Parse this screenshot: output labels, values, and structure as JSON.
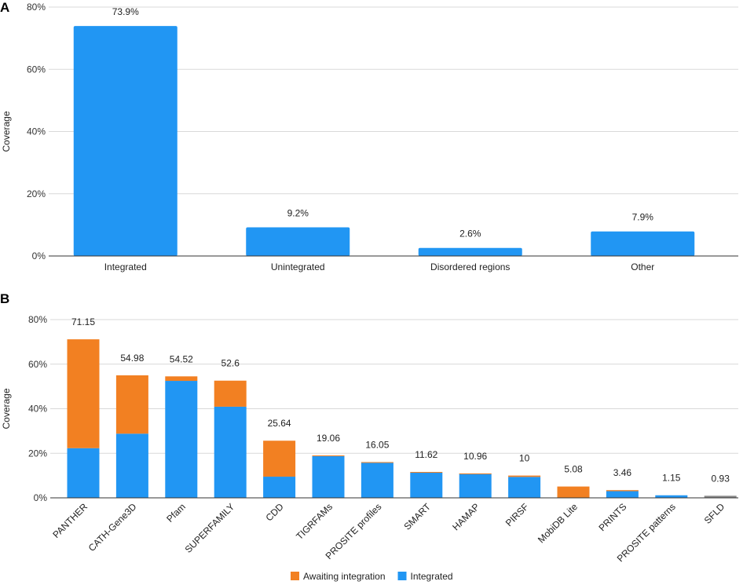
{
  "chart_data": [
    {
      "panel": "A",
      "type": "bar",
      "ylabel": "Coverage",
      "ylim": [
        0,
        80
      ],
      "yticks": [
        "0%",
        "20%",
        "40%",
        "60%",
        "80%"
      ],
      "categories": [
        "Integrated",
        "Unintegrated",
        "Disordered regions",
        "Other"
      ],
      "values": [
        73.9,
        9.2,
        2.6,
        7.9
      ],
      "data_labels": [
        "73.9%",
        "9.2%",
        "2.6%",
        "7.9%"
      ],
      "color": "#2196F3",
      "grid": true
    },
    {
      "panel": "B",
      "type": "bar",
      "stacked": true,
      "ylabel": "Coverage",
      "ylim": [
        0,
        80
      ],
      "yticks": [
        "0%",
        "20%",
        "40%",
        "60%",
        "80%"
      ],
      "categories": [
        "PANTHER",
        "CATH-Gene3D",
        "Pfam",
        "SUPERFAMILY",
        "CDD",
        "TIGRFAMs",
        "PROSITE profiles",
        "SMART",
        "HAMAP",
        "PIRSF",
        "MobiDB Lite",
        "PRINTS",
        "PROSITE patterns",
        "SFLD"
      ],
      "series": [
        {
          "name": "Integrated",
          "color": "#2196F3",
          "values": [
            22.3,
            28.8,
            52.5,
            40.9,
            9.5,
            18.7,
            15.8,
            11.3,
            10.9,
            9.4,
            0,
            3.0,
            1.15,
            0
          ]
        },
        {
          "name": "Awaiting integration",
          "color": "#F28022",
          "values": [
            48.85,
            26.18,
            2.02,
            11.7,
            16.14,
            0.36,
            0.25,
            0.32,
            0.06,
            0.6,
            5.08,
            0.46,
            0,
            0
          ]
        },
        {
          "name": "",
          "color": "#8A8A8A",
          "values": [
            0,
            0,
            0,
            0,
            0,
            0,
            0,
            0,
            0,
            0,
            0,
            0,
            0,
            0.93
          ]
        }
      ],
      "data_labels": [
        "71.15",
        "54.98",
        "54.52",
        "52.6",
        "25.64",
        "19.06",
        "16.05",
        "11.62",
        "10.96",
        "10",
        "5.08",
        "3.46",
        "1.15",
        "0.93"
      ],
      "legend": {
        "placement": "bottom",
        "entries": [
          "Awaiting integration",
          "Integrated"
        ]
      },
      "grid": true
    }
  ]
}
